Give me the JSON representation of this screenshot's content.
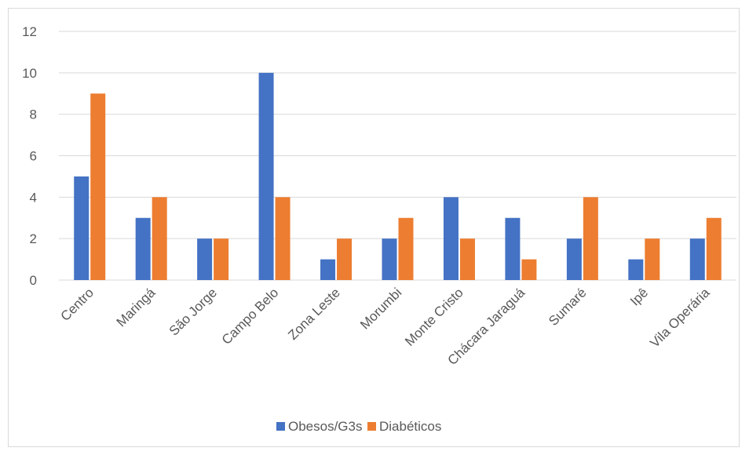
{
  "chart_data": {
    "type": "bar",
    "title": "",
    "xlabel": "",
    "ylabel": "",
    "categories": [
      "Centro",
      "Maringá",
      "São Jorge",
      "Campo Belo",
      "Zona Leste",
      "Morumbi",
      "Monte Cristo",
      "Chácara Jaraguá",
      "Sumaré",
      "Ipê",
      "Vila Operária"
    ],
    "series": [
      {
        "name": "Obesos/G3s",
        "color": "#4472c4",
        "values": [
          5,
          3,
          2,
          10,
          1,
          2,
          4,
          3,
          2,
          1,
          2
        ]
      },
      {
        "name": "Diabéticos",
        "color": "#ed7d31",
        "values": [
          9,
          4,
          2,
          4,
          2,
          3,
          2,
          1,
          4,
          2,
          3
        ]
      }
    ],
    "ylim": [
      0,
      12
    ],
    "yticks": [
      0,
      2,
      4,
      6,
      8,
      10,
      12
    ],
    "grid": true,
    "legend_position": "bottom"
  }
}
